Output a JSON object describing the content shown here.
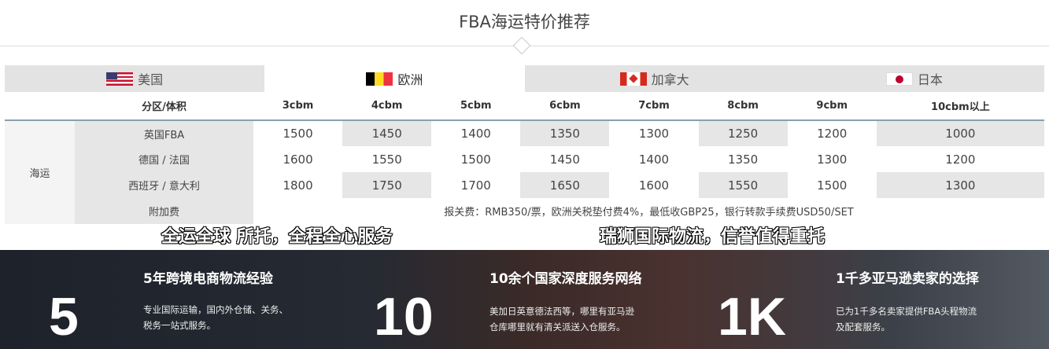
{
  "title": "FBA海运特价推荐",
  "tabs": [
    {
      "label": "美国",
      "flag": "us-flag-icon",
      "active": false
    },
    {
      "label": "欧洲",
      "flag": "belgium-flag-icon",
      "active": true
    },
    {
      "label": "加拿大",
      "flag": "canada-flag-icon",
      "active": false
    },
    {
      "label": "日本",
      "flag": "japan-flag-icon",
      "active": false
    }
  ],
  "table": {
    "header": [
      "分区/体积",
      "3cbm",
      "4cbm",
      "5cbm",
      "6cbm",
      "7cbm",
      "8cbm",
      "9cbm",
      "10cbm以上"
    ],
    "group": "海运",
    "rows": [
      {
        "label": "英国FBA",
        "values": [
          "1500",
          "1450",
          "1400",
          "1350",
          "1300",
          "1250",
          "1200",
          "1000"
        ]
      },
      {
        "label": "德国 / 法国",
        "values": [
          "1600",
          "1550",
          "1500",
          "1450",
          "1400",
          "1350",
          "1300",
          "1200"
        ]
      },
      {
        "label": "西班牙 / 意大利",
        "values": [
          "1800",
          "1750",
          "1700",
          "1650",
          "1600",
          "1550",
          "1500",
          "1300"
        ]
      }
    ],
    "fee_label": "附加费",
    "fee_text": "报关费：RMB350/票，欧洲关税垫付费4%，最低收GBP25，银行转款手续费USD50/SET"
  },
  "slogans": [
    "全运全球 所托，全程全心服务",
    "瑞狮国际物流，信誉值得重托"
  ],
  "stats": [
    {
      "number": "5",
      "heading": "5年跨境电商物流经验",
      "desc": "专业国际运输，国内外仓储、关务、税务一站式服务。"
    },
    {
      "number": "10",
      "heading": "10余个国家深度服务网络",
      "desc": "美加日英意德法西等，哪里有亚马逊仓库哪里就有清关派送入仓服务。"
    },
    {
      "number": "1K",
      "heading": "1千多亚马逊卖家的选择",
      "desc": "已为1千多名卖家提供FBA头程物流及配套服务。"
    }
  ]
}
